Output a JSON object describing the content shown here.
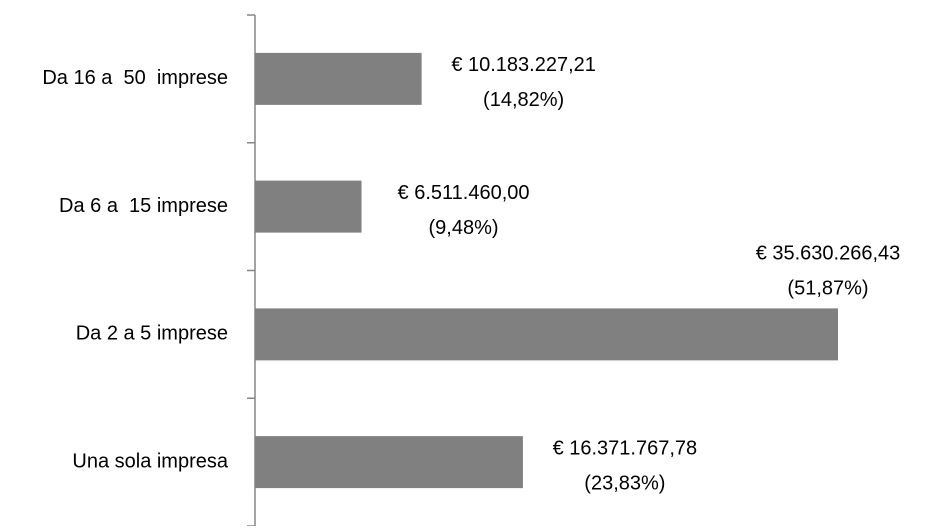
{
  "chart_data": {
    "type": "bar",
    "orientation": "horizontal",
    "categories": [
      "Da 16 a  50  imprese",
      "Da 6 a  15 imprese",
      "Da 2 a 5 imprese",
      "Una sola impresa"
    ],
    "values": [
      10183227.21,
      6511460.0,
      35630266.43,
      16371767.78
    ],
    "value_labels": [
      "€ 10.183.227,21",
      "€ 6.511.460,00",
      "€ 35.630.266,43",
      "€ 16.371.767,78"
    ],
    "shares": [
      14.82,
      9.48,
      51.87,
      23.83
    ],
    "share_labels": [
      "(14,82%)",
      "(9,48%)",
      "(51,87%)",
      "(23,83%)"
    ],
    "color": "#808080"
  }
}
